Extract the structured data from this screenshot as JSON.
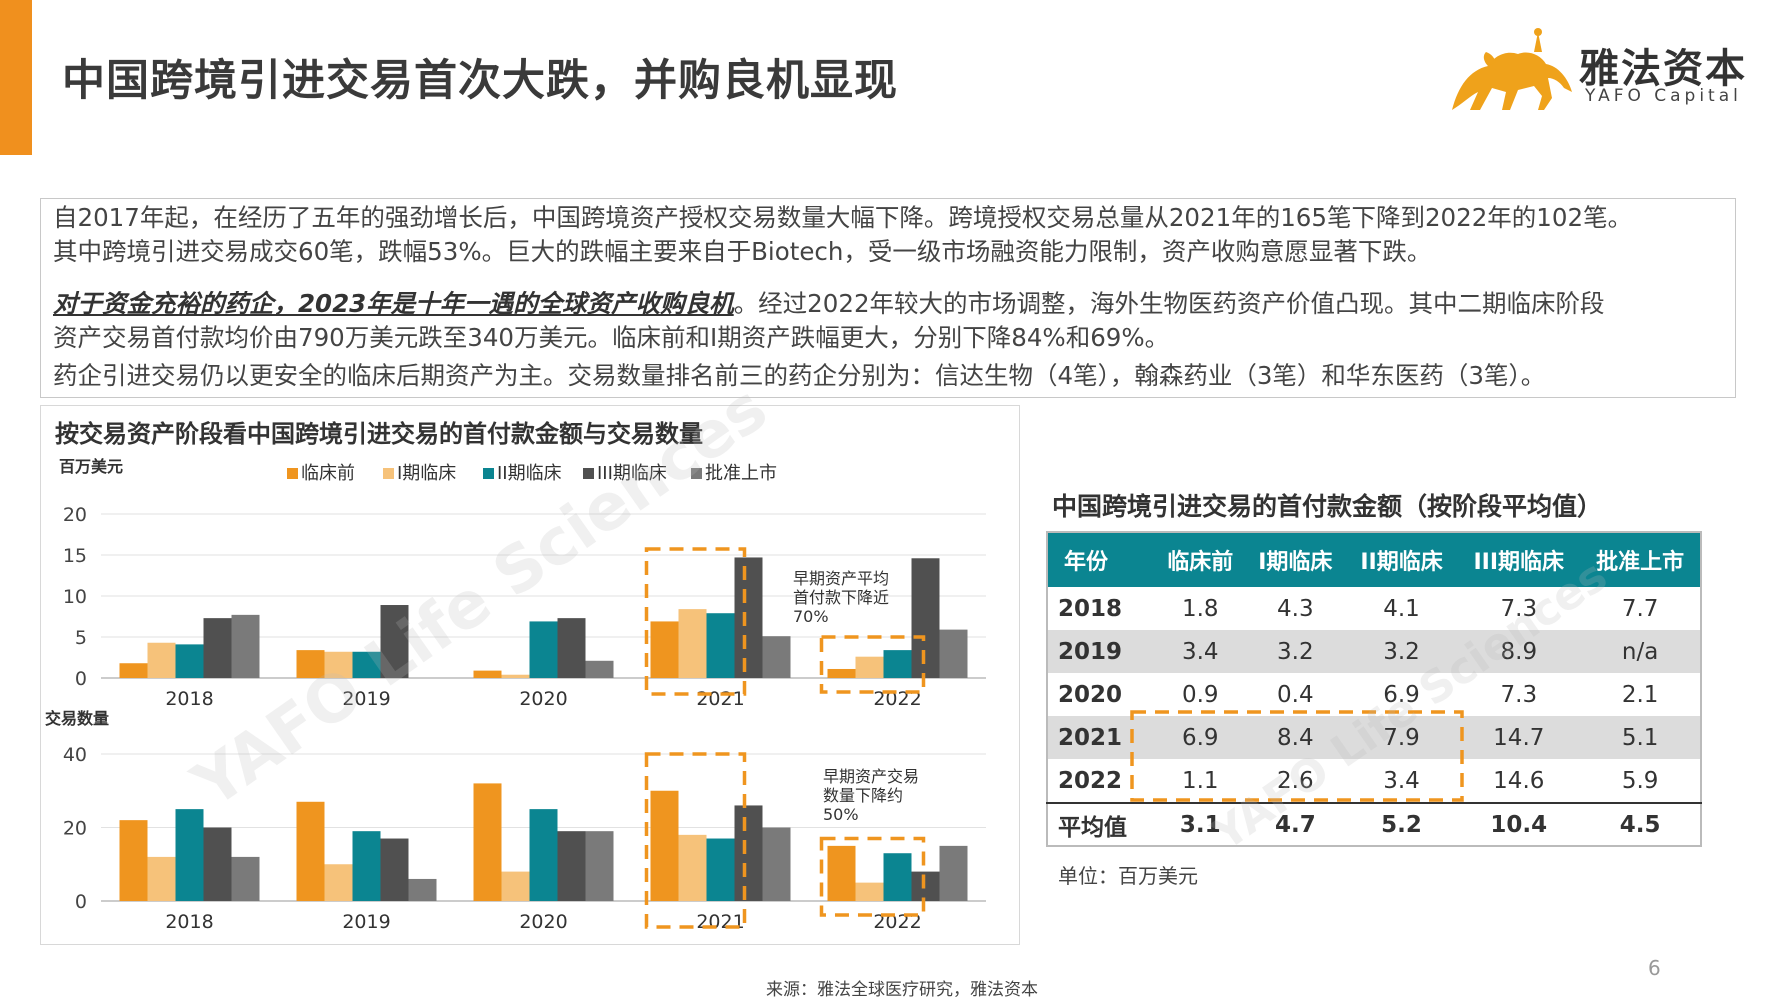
{
  "title": "中国跨境引进交易首次大跌，并购良机显现",
  "logo": {
    "cn": "雅法资本",
    "en": "YAFO Capital"
  },
  "summary": {
    "p1_line1": "自2017年起，在经历了五年的强劲增长后，中国跨境资产授权交易数量大幅下降。跨境授权交易总量从2021年的165笔下降到2022年的102笔。",
    "p1_line2": "其中跨境引进交易成交60笔，跌幅53%。巨大的跌幅主要来自于Biotech，受一级市场融资能力限制，资产收购意愿显著下跌。",
    "p2_highlight": "对于资金充裕的药企，2023年是十年一遇的全球资产收购良机",
    "p2_rest": "。经过2022年较大的市场调整，海外生物医药资产价值凸现。其中二期临床阶段",
    "p2_line2": "资产交易首付款均价由790万美元跌至340万美元。临床前和I期资产跌幅更大，分别下降84%和69%。",
    "p3": "药企引进交易仍以更安全的临床后期资产为主。交易数量排名前三的药企分别为：信达生物（4笔），翰森药业（3笔）和华东医药（3笔）。"
  },
  "watermark": "YAFO Life Sciences",
  "chart_data": [
    {
      "type": "bar",
      "title": "按交易资产阶段看中国跨境引进交易的首付款金额与交易数量",
      "ylabel": "百万美元",
      "categories": [
        "2018",
        "2019",
        "2020",
        "2021",
        "2022"
      ],
      "ylim": [
        0,
        20
      ],
      "yticks": [
        0,
        5,
        10,
        15,
        20
      ],
      "grid": true,
      "legend_position": "top",
      "series": [
        {
          "name": "临床前",
          "color": "#ef951f",
          "values": [
            1.8,
            3.4,
            0.9,
            6.9,
            1.1
          ]
        },
        {
          "name": "I期临床",
          "color": "#f6c27a",
          "values": [
            4.3,
            3.2,
            0.4,
            8.4,
            2.6
          ]
        },
        {
          "name": "II期临床",
          "color": "#0b8591",
          "values": [
            4.1,
            3.2,
            6.9,
            7.9,
            3.4
          ]
        },
        {
          "name": "III期临床",
          "color": "#505050",
          "values": [
            7.3,
            8.9,
            7.3,
            14.7,
            14.6
          ]
        },
        {
          "name": "批准上市",
          "color": "#7a7a7a",
          "values": [
            7.7,
            null,
            2.1,
            5.1,
            5.9
          ]
        }
      ],
      "annotation": "早期资产平均首付款下降近70%"
    },
    {
      "type": "bar",
      "ylabel": "交易数量",
      "categories": [
        "2018",
        "2019",
        "2020",
        "2021",
        "2022"
      ],
      "ylim": [
        0,
        40
      ],
      "yticks": [
        0,
        20,
        40
      ],
      "grid": true,
      "series": [
        {
          "name": "临床前",
          "color": "#ef951f",
          "values": [
            22,
            27,
            32,
            30,
            15
          ]
        },
        {
          "name": "I期临床",
          "color": "#f6c27a",
          "values": [
            12,
            10,
            8,
            18,
            5
          ]
        },
        {
          "name": "II期临床",
          "color": "#0b8591",
          "values": [
            25,
            19,
            25,
            17,
            13
          ]
        },
        {
          "name": "III期临床",
          "color": "#505050",
          "values": [
            20,
            17,
            19,
            26,
            8
          ]
        },
        {
          "name": "批准上市",
          "color": "#7a7a7a",
          "values": [
            12,
            6,
            19,
            20,
            15
          ]
        }
      ],
      "annotation": "早期资产交易数量下降约50%"
    },
    {
      "type": "table",
      "title": "中国跨境引进交易的首付款金额（按阶段平均值）",
      "headers": [
        "年份",
        "临床前",
        "I期临床",
        "II期临床",
        "III期临床",
        "批准上市"
      ],
      "rows": [
        [
          "2018",
          "1.8",
          "4.3",
          "4.1",
          "7.3",
          "7.7"
        ],
        [
          "2019",
          "3.4",
          "3.2",
          "3.2",
          "8.9",
          "n/a"
        ],
        [
          "2020",
          "0.9",
          "0.4",
          "6.9",
          "7.3",
          "2.1"
        ],
        [
          "2021",
          "6.9",
          "8.4",
          "7.9",
          "14.7",
          "5.1"
        ],
        [
          "2022",
          "1.1",
          "2.6",
          "3.4",
          "14.6",
          "5.9"
        ]
      ],
      "footer": [
        "平均值",
        "3.1",
        "4.7",
        "5.2",
        "10.4",
        "4.5"
      ],
      "unit": "单位：百万美元"
    }
  ],
  "source": "来源：雅法全球医疗研究，雅法资本",
  "page_number": "6"
}
